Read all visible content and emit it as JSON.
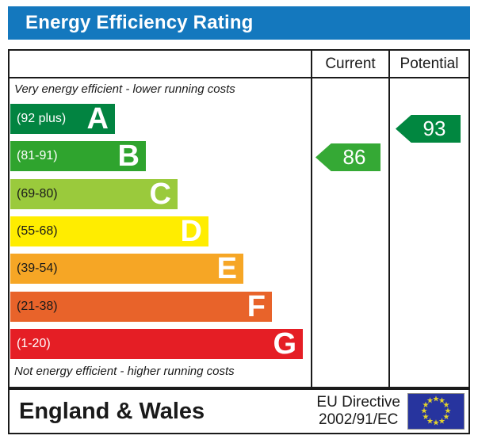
{
  "title": "Energy Efficiency Rating",
  "accent_color": "#1478be",
  "columns": {
    "current": "Current",
    "potential": "Potential"
  },
  "top_caption": "Very energy efficient - lower running costs",
  "bottom_caption": "Not energy efficient - higher running costs",
  "chart_data": {
    "type": "bar",
    "title": "Energy Efficiency Rating",
    "bands": [
      {
        "letter": "A",
        "range_label": "(92 plus)",
        "min": 92,
        "max": 100,
        "color": "#028441"
      },
      {
        "letter": "B",
        "range_label": "(81-91)",
        "min": 81,
        "max": 91,
        "color": "#2fa42e"
      },
      {
        "letter": "C",
        "range_label": "(69-80)",
        "min": 69,
        "max": 80,
        "color": "#9aca3c"
      },
      {
        "letter": "D",
        "range_label": "(55-68)",
        "min": 55,
        "max": 68,
        "color": "#ffed00"
      },
      {
        "letter": "E",
        "range_label": "(39-54)",
        "min": 39,
        "max": 54,
        "color": "#f6a625"
      },
      {
        "letter": "F",
        "range_label": "(21-38)",
        "min": 21,
        "max": 38,
        "color": "#e8632a"
      },
      {
        "letter": "G",
        "range_label": "(1-20)",
        "min": 1,
        "max": 20,
        "color": "#e51e25"
      }
    ],
    "current": {
      "value": 86,
      "band": "B",
      "color": "#35a935"
    },
    "potential": {
      "value": 93,
      "band": "A",
      "color": "#018740"
    }
  },
  "footer": {
    "region": "England & Wales",
    "directive_line1": "EU Directive",
    "directive_line2": "2002/91/EC",
    "flag": "eu-flag"
  }
}
